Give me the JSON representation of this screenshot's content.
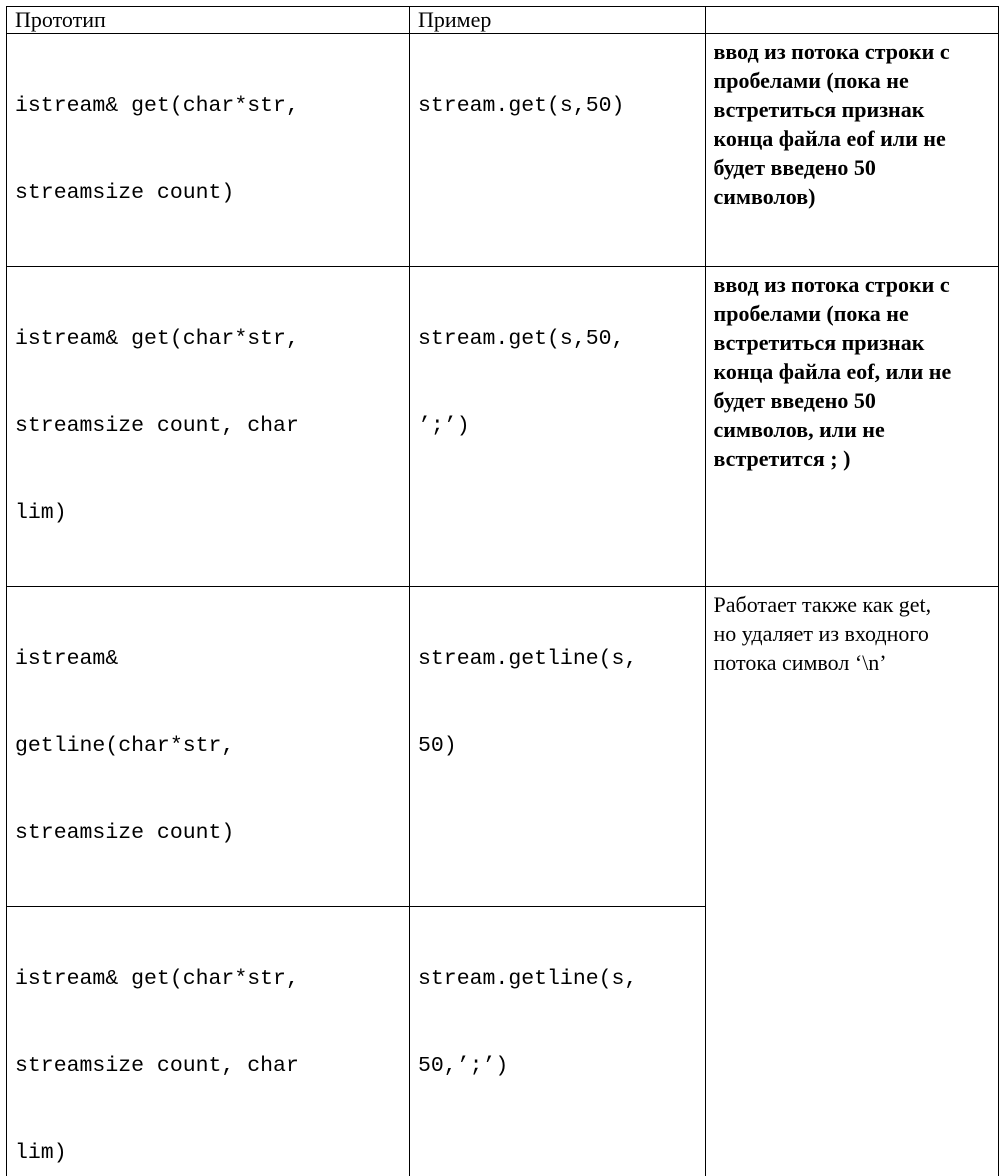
{
  "table": {
    "headers": [
      "Прототип",
      "Пример",
      ""
    ],
    "rows": [
      {
        "prototype": [
          "istream& get(char*str,",
          "streamsize count)"
        ],
        "example": [
          "stream.get(s,50)"
        ],
        "description": [
          "ввод из потока строки с",
          "пробелами (пока не",
          "встретиться признак",
          "конца файла eof или не",
          "будет введено 50",
          "символов)"
        ]
      },
      {
        "prototype": [
          "istream& get(char*str,",
          "streamsize count, char",
          "lim)"
        ],
        "example": [
          "stream.get(s,50,",
          "’;’)"
        ],
        "description": [
          "ввод из потока строки с",
          "пробелами (пока не",
          "встретиться признак",
          "конца файла eof, или не",
          "будет введено 50",
          "символов, или не",
          "встретится ; )"
        ]
      },
      {
        "prototype": [
          "istream&",
          "getline(char*str,",
          "streamsize count)"
        ],
        "example": [
          "stream.getline(s,",
          "50)"
        ],
        "description": [
          "Работает также как get,",
          "но удаляет из входного",
          "потока символ ‘\\n’"
        ]
      },
      {
        "prototype": [
          "istream& get(char*str,",
          "streamsize count, char",
          "lim)"
        ],
        "example": [
          "stream.getline(s,",
          "50,’;’)"
        ]
      }
    ]
  }
}
